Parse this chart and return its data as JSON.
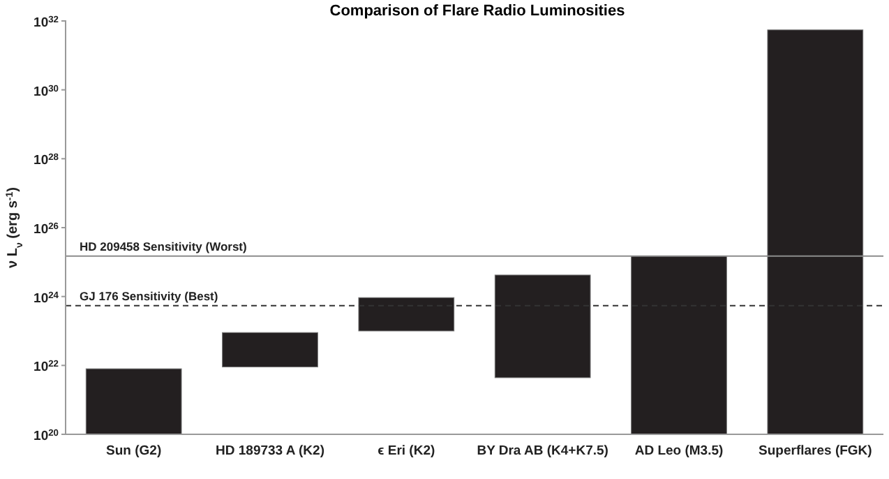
{
  "chart_data": {
    "type": "bar",
    "title": "Comparison of Flare Radio Luminosities",
    "ylabel": "ν L$_{ν}$ (erg s$^{-1}$)",
    "categories": [
      "Sun (G2)",
      "HD 189733 A (K2)",
      "ϵ Eri (K2)",
      "BY Dra AB (K4+K7.5)",
      "AD Leo (M3.5)",
      "Superflares (FGK)"
    ],
    "values": [
      7.9e+21,
      8.1e+22,
      8.3e+23,
      4.2e+24,
      1.5e+25,
      5.5e+31
    ],
    "base": [
      1e+20,
      9e+21,
      1e+23,
      4.4e+21,
      1e+20,
      1e+20
    ],
    "color": "#231f20",
    "log": true,
    "ylim": [
      1e+20,
      1e+32
    ],
    "yticks": [
      {
        "value": 1e+20,
        "label": "10$^{20}$"
      },
      {
        "value": 1e+22,
        "label": "10$^{22}$"
      },
      {
        "value": 1e+24,
        "label": "10$^{24}$"
      },
      {
        "value": 1e+26,
        "label": "10$^{26}$"
      },
      {
        "value": 1e+28,
        "label": "10$^{28}$"
      },
      {
        "value": 1e+30,
        "label": "10$^{30}$"
      },
      {
        "value": 1e+32,
        "label": "10$^{32}$"
      }
    ],
    "ref_lines": [
      {
        "axis": "y",
        "value": 1.5e+25,
        "label": "HD 209458 Sensitivity (Worst)",
        "color": "#8c8c8c",
        "line_style": "solid"
      },
      {
        "axis": "y",
        "value": 5.4e+23,
        "label": "GJ 176 Sensitivity (Best)",
        "color": "#333333",
        "line_style": "dashed"
      }
    ],
    "grid": false
  }
}
